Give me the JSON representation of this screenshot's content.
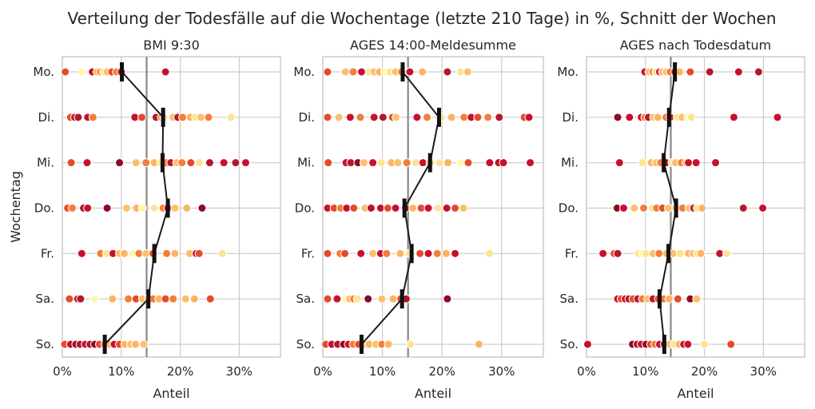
{
  "suptitle": "Verteilung der Todesfälle auf die Wochentage (letzte 210 Tage) in %, Schnitt der Wochen",
  "chart_data": [
    {
      "type": "scatter",
      "title": "BMI 9:30",
      "xlabel": "Anteil",
      "ylabel": "Wochentag",
      "categories": [
        "Mo.",
        "Di.",
        "Mi.",
        "Do.",
        "Fr.",
        "Sa.",
        "So."
      ],
      "xlim": [
        0,
        37
      ],
      "xticks": [
        0,
        10,
        20,
        30
      ],
      "xtick_labels": [
        "0%",
        "10%",
        "20%",
        "30%"
      ],
      "reference_line": 14.3,
      "mean_line": [
        10.1,
        17.1,
        17.0,
        17.9,
        15.6,
        14.6,
        7.2
      ],
      "points": [
        [
          0.5,
          3.3,
          5.1,
          5.9,
          6.5,
          7.0,
          7.6,
          8.4,
          9.2,
          10.0,
          17.5
        ],
        [
          1.4,
          2.1,
          2.7,
          4.3,
          5.2,
          12.3,
          13.5,
          15.9,
          16.8,
          17.2,
          18.8,
          19.6,
          20.4,
          21.7,
          22.6,
          23.5,
          24.8,
          28.6
        ],
        [
          1.5,
          4.2,
          9.7,
          12.5,
          14.2,
          15.6,
          16.7,
          17.6,
          18.4,
          19.4,
          20.3,
          21.8,
          23.2,
          25.0,
          27.4,
          29.4,
          31.1
        ],
        [
          0.9,
          1.7,
          3.6,
          4.3,
          7.6,
          10.9,
          12.6,
          13.6,
          15.6,
          17.1,
          17.9,
          19.1,
          21.1,
          23.7
        ],
        [
          3.3,
          6.5,
          7.5,
          8.6,
          9.7,
          10.5,
          11.9,
          13.0,
          14.2,
          15.4,
          17.7,
          19.1,
          21.6,
          22.7,
          23.2,
          27.1
        ],
        [
          1.2,
          2.6,
          3.1,
          5.5,
          8.5,
          11.2,
          12.5,
          13.6,
          14.6,
          15.4,
          16.4,
          17.5,
          18.8,
          20.9,
          22.4,
          25.1
        ],
        [
          0.4,
          1.4,
          2.3,
          3.0,
          3.9,
          4.7,
          5.5,
          6.3,
          7.2,
          8.0,
          8.8,
          9.7,
          10.6,
          11.6,
          12.4,
          13.8
        ]
      ],
      "point_colors": [
        [
          "#e64a2c",
          "#fff7b0",
          "#c8102e",
          "#fdb462",
          "#f47d3a",
          "#fee391",
          "#fcbf6b",
          "#e64a2c",
          "#f47d3a",
          "#b2182b",
          "#c8102e"
        ],
        [
          "#e64a2c",
          "#c8102e",
          "#b2182b",
          "#c8102e",
          "#f47d3a",
          "#c8102e",
          "#e64a2c",
          "#b2182b",
          "#f47d3a",
          "#fee391",
          "#fcbf6b",
          "#b2182b",
          "#f47d3a",
          "#fdb462",
          "#fee391",
          "#fcbf6b",
          "#f47d3a",
          "#fee391"
        ],
        [
          "#e64a2c",
          "#c8102e",
          "#8b0a26",
          "#fcbf6b",
          "#f47d3a",
          "#fdb462",
          "#fee391",
          "#f47d3a",
          "#c8102e",
          "#fcbf6b",
          "#f47d3a",
          "#e64a2c",
          "#fee391",
          "#b2182b",
          "#c8102e",
          "#b2182b",
          "#c8102e"
        ],
        [
          "#e64a2c",
          "#f47d3a",
          "#b2182b",
          "#c8102e",
          "#8b0a26",
          "#fcbf6b",
          "#fdb462",
          "#fff7b0",
          "#fee391",
          "#f47d3a",
          "#c8102e",
          "#fcbf6b",
          "#fdb462",
          "#8b0a26"
        ],
        [
          "#c8102e",
          "#f47d3a",
          "#fee391",
          "#c8102e",
          "#fcbf6b",
          "#fdb462",
          "#fff7b0",
          "#f47d3a",
          "#fcbf6b",
          "#e64a2c",
          "#f47d3a",
          "#fdb462",
          "#fcbf6b",
          "#c8102e",
          "#e64a2c",
          "#fee391"
        ],
        [
          "#e64a2c",
          "#c8102e",
          "#b2182b",
          "#fff7b0",
          "#fdb462",
          "#f47d3a",
          "#e64a2c",
          "#fcbf6b",
          "#fdb462",
          "#f47d3a",
          "#fdb462",
          "#e64a2c",
          "#f47d3a",
          "#fcbf6b",
          "#fdb462",
          "#e64a2c"
        ],
        [
          "#e64a2c",
          "#c8102e",
          "#8b0a26",
          "#b2182b",
          "#c8102e",
          "#b2182b",
          "#8b0a26",
          "#e64a2c",
          "#f47d3a",
          "#fcbf6b",
          "#c8102e",
          "#e64a2c",
          "#fdb462",
          "#fcbf6b",
          "#fdb462",
          "#fcbf6b"
        ]
      ]
    },
    {
      "type": "scatter",
      "title": "AGES 14:00-Meldesumme",
      "xlabel": "Anteil",
      "ylabel": "",
      "categories": [
        "Mo.",
        "Di.",
        "Mi.",
        "Do.",
        "Fr.",
        "Sa.",
        "So."
      ],
      "xlim": [
        0,
        37
      ],
      "xticks": [
        0,
        10,
        20,
        30
      ],
      "xtick_labels": [
        "0%",
        "10%",
        "20%",
        "30%"
      ],
      "reference_line": 14.3,
      "mean_line": [
        13.4,
        19.5,
        18.0,
        13.7,
        14.9,
        13.3,
        6.5
      ],
      "points": [
        [
          0.8,
          3.8,
          5.1,
          6.5,
          7.8,
          8.6,
          9.5,
          10.4,
          11.3,
          12.2,
          13.2,
          14.6,
          16.7,
          20.9,
          23.1,
          24.3
        ],
        [
          0.8,
          2.7,
          4.6,
          6.3,
          8.6,
          10.1,
          11.7,
          12.3,
          15.8,
          17.5,
          19.8,
          21.6,
          23.7,
          24.9,
          26.0,
          27.7,
          29.6,
          33.8,
          34.6
        ],
        [
          0.9,
          3.9,
          4.7,
          5.9,
          6.9,
          8.4,
          9.8,
          11.5,
          12.6,
          14.1,
          15.6,
          16.8,
          18.0,
          19.6,
          21.0,
          23.1,
          24.4,
          28.0,
          29.5,
          30.3,
          34.8
        ],
        [
          0.8,
          1.9,
          3.0,
          4.0,
          5.2,
          7.1,
          8.1,
          9.7,
          10.9,
          12.2,
          13.9,
          15.1,
          16.5,
          17.7,
          19.3,
          20.8,
          22.2,
          23.6
        ],
        [
          0.8,
          2.9,
          3.7,
          6.4,
          8.4,
          9.7,
          10.7,
          13.0,
          14.5,
          16.3,
          17.7,
          19.2,
          20.7,
          22.2,
          28.0
        ],
        [
          0.8,
          2.4,
          3.8,
          4.5,
          5.2,
          5.8,
          7.6,
          9.9,
          11.8,
          13.1,
          14.0,
          20.9
        ],
        [
          0.5,
          1.5,
          2.5,
          3.5,
          4.3,
          5.1,
          6.0,
          7.0,
          7.8,
          8.9,
          9.9,
          11.0,
          14.7,
          26.2
        ]
      ],
      "point_colors": [
        [
          "#e64a2c",
          "#fcbf6b",
          "#f47d3a",
          "#c8102e",
          "#fee391",
          "#fcbf6b",
          "#fdb462",
          "#fff7b0",
          "#fee391",
          "#fcbf6b",
          "#f47d3a",
          "#c8102e",
          "#fdb462",
          "#b2182b",
          "#fee391",
          "#fcbf6b"
        ],
        [
          "#e64a2c",
          "#fcbf6b",
          "#c8102e",
          "#f47d3a",
          "#c8102e",
          "#b2182b",
          "#e64a2c",
          "#fcbf6b",
          "#c8102e",
          "#f47d3a",
          "#fee391",
          "#fdb462",
          "#f47d3a",
          "#c8102e",
          "#e64a2c",
          "#f47d3a",
          "#b2182b",
          "#e64a2c",
          "#c8102e"
        ],
        [
          "#e64a2c",
          "#c8102e",
          "#b2182b",
          "#8b0a26",
          "#fcbf6b",
          "#c8102e",
          "#fee391",
          "#fdb462",
          "#fcbf6b",
          "#f47d3a",
          "#fee391",
          "#c8102e",
          "#fcbf6b",
          "#fee391",
          "#fdb462",
          "#fff7b0",
          "#e64a2c",
          "#c8102e",
          "#b2182b",
          "#c8102e",
          "#c8102e"
        ],
        [
          "#c8102e",
          "#e64a2c",
          "#f47d3a",
          "#c8102e",
          "#e64a2c",
          "#fcbf6b",
          "#b2182b",
          "#c8102e",
          "#e64a2c",
          "#c8102e",
          "#8b0a26",
          "#fdb462",
          "#e64a2c",
          "#c8102e",
          "#fee391",
          "#c8102e",
          "#e64a2c",
          "#fcbf6b"
        ],
        [
          "#e64a2c",
          "#f47d3a",
          "#e64a2c",
          "#c8102e",
          "#fcbf6b",
          "#c8102e",
          "#f47d3a",
          "#fdb462",
          "#fee391",
          "#e64a2c",
          "#c8102e",
          "#f47d3a",
          "#fdb462",
          "#c8102e",
          "#fee391"
        ],
        [
          "#e64a2c",
          "#c8102e",
          "#fff7b0",
          "#fcbf6b",
          "#f47d3a",
          "#fee391",
          "#8b0a26",
          "#fcbf6b",
          "#fdb462",
          "#e64a2c",
          "#b2182b",
          "#8b0a26"
        ],
        [
          "#e64a2c",
          "#c8102e",
          "#b2182b",
          "#8b0a26",
          "#c8102e",
          "#f47d3a",
          "#e64a2c",
          "#fcbf6b",
          "#fdb462",
          "#fcbf6b",
          "#f47d3a",
          "#fdb462",
          "#fee391",
          "#fdb462"
        ]
      ]
    },
    {
      "type": "scatter",
      "title": "AGES nach Todesdatum",
      "xlabel": "Anteil",
      "ylabel": "",
      "categories": [
        "Mo.",
        "Di.",
        "Mi.",
        "Do.",
        "Fr.",
        "Sa.",
        "So."
      ],
      "xlim": [
        0,
        37
      ],
      "xticks": [
        0,
        10,
        20,
        30
      ],
      "xtick_labels": [
        "0%",
        "10%",
        "20%",
        "30%"
      ],
      "reference_line": 14.3,
      "mean_line": [
        15.0,
        14.0,
        13.1,
        15.2,
        13.9,
        12.4,
        13.2
      ],
      "points": [
        [
          9.9,
          10.6,
          11.3,
          11.8,
          12.4,
          12.9,
          13.5,
          14.2,
          15.0,
          15.8,
          17.6,
          20.9,
          25.8,
          29.2
        ],
        [
          5.3,
          7.3,
          9.3,
          9.9,
          10.5,
          11.4,
          12.1,
          13.5,
          14.2,
          15.4,
          16.2,
          17.2,
          17.8,
          25.0,
          32.4
        ],
        [
          5.6,
          9.5,
          11.0,
          11.8,
          12.6,
          13.5,
          14.5,
          15.1,
          16.1,
          16.9,
          17.3,
          18.6,
          21.9
        ],
        [
          5.2,
          6.3,
          8.1,
          9.7,
          11.2,
          11.9,
          12.9,
          13.9,
          15.2,
          16.3,
          17.4,
          18.2,
          18.8,
          19.6,
          26.6,
          29.9
        ],
        [
          2.8,
          4.7,
          5.3,
          8.8,
          9.5,
          10.1,
          11.3,
          12.3,
          13.6,
          14.7,
          15.9,
          17.3,
          18.1,
          18.8,
          19.4,
          22.6,
          23.8
        ],
        [
          5.3,
          5.9,
          6.6,
          7.2,
          7.9,
          8.7,
          9.5,
          10.4,
          11.3,
          12.2,
          13.1,
          14.0,
          15.5,
          17.6,
          18.7
        ],
        [
          0.2,
          7.8,
          8.6,
          9.3,
          10.1,
          10.9,
          11.6,
          12.4,
          13.2,
          14.1,
          14.9,
          15.7,
          16.5,
          17.2,
          20.0,
          24.5
        ]
      ],
      "point_colors": [
        [
          "#c8102e",
          "#fcbf6b",
          "#f47d3a",
          "#fee391",
          "#c8102e",
          "#fdb462",
          "#fcbf6b",
          "#f47d3a",
          "#c8102e",
          "#fdb462",
          "#e64a2c",
          "#b2182b",
          "#c8102e",
          "#b2182b"
        ],
        [
          "#8b0a26",
          "#c8102e",
          "#c8102e",
          "#f47d3a",
          "#b2182b",
          "#fcbf6b",
          "#fdb462",
          "#f47d3a",
          "#c8102e",
          "#fee391",
          "#fcbf6b",
          "#fff7b0",
          "#fee391",
          "#c8102e",
          "#c8102e"
        ],
        [
          "#c8102e",
          "#fee391",
          "#fdb462",
          "#fcbf6b",
          "#f47d3a",
          "#8b0a26",
          "#fee391",
          "#fcbf6b",
          "#f47d3a",
          "#fdb462",
          "#c8102e",
          "#c8102e",
          "#c8102e"
        ],
        [
          "#8b0a26",
          "#c8102e",
          "#fcbf6b",
          "#f47d3a",
          "#fee391",
          "#f47d3a",
          "#e64a2c",
          "#fcbf6b",
          "#fdb462",
          "#f47d3a",
          "#fcbf6b",
          "#c8102e",
          "#fee391",
          "#fdb462",
          "#b2182b",
          "#c8102e"
        ],
        [
          "#c8102e",
          "#e64a2c",
          "#b2182b",
          "#fee391",
          "#fff7b0",
          "#fee391",
          "#fcbf6b",
          "#f47d3a",
          "#fdb462",
          "#fcbf6b",
          "#fee391",
          "#fdb462",
          "#fcbf6b",
          "#fee391",
          "#fdb462",
          "#c8102e",
          "#fee391"
        ],
        [
          "#c8102e",
          "#e64a2c",
          "#c8102e",
          "#b2182b",
          "#e64a2c",
          "#c8102e",
          "#f47d3a",
          "#fcbf6b",
          "#c8102e",
          "#e64a2c",
          "#f47d3a",
          "#fdb462",
          "#e64a2c",
          "#8b0a26",
          "#fcbf6b"
        ],
        [
          "#c8102e",
          "#8b0a26",
          "#b2182b",
          "#c8102e",
          "#8b0a26",
          "#e64a2c",
          "#f47d3a",
          "#c8102e",
          "#b2182b",
          "#fcbf6b",
          "#fee391",
          "#fdb462",
          "#b2182b",
          "#c8102e",
          "#fee391",
          "#e64a2c"
        ]
      ]
    }
  ]
}
